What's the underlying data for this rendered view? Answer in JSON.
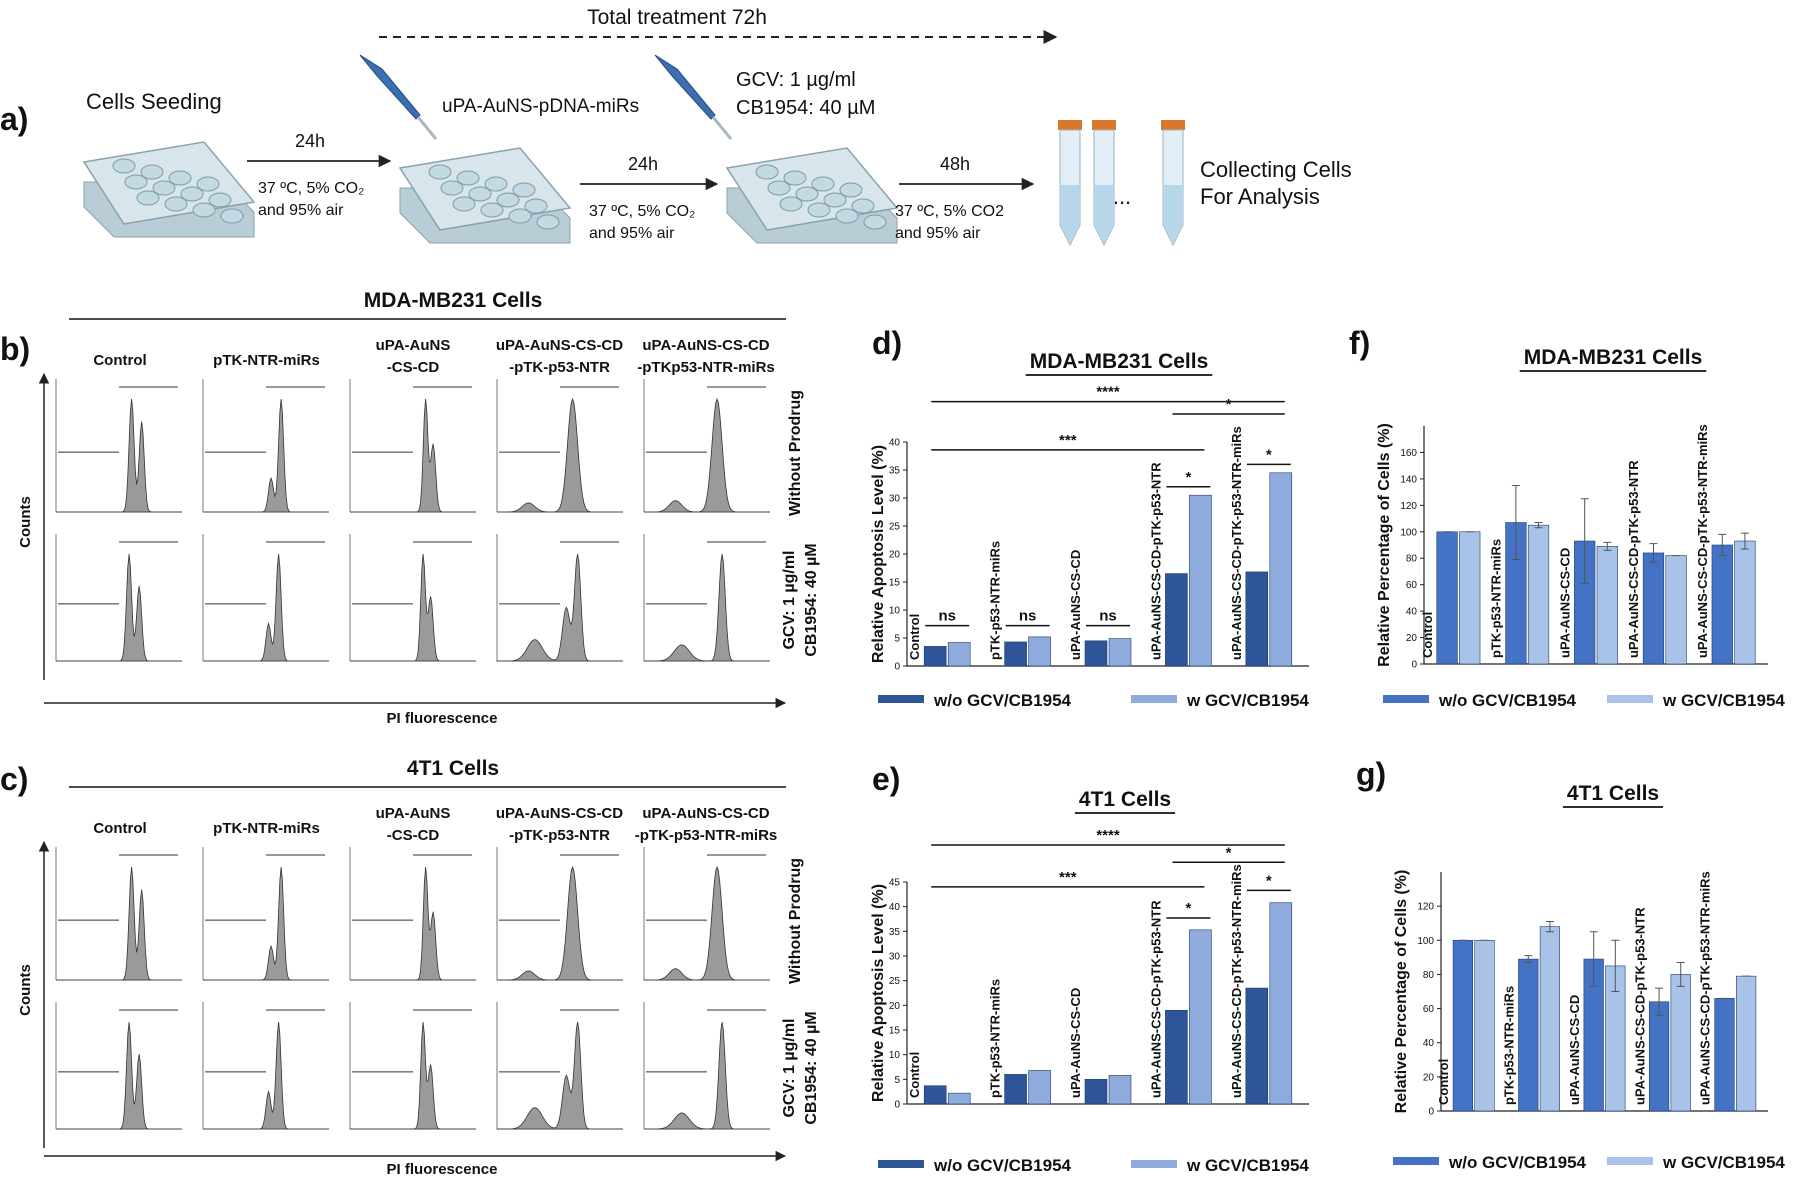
{
  "panel_labels": [
    "a)",
    "b)",
    "c)",
    "d)",
    "e)",
    "f)",
    "g)"
  ],
  "workflow": {
    "duration": "Total treatment 72h",
    "seeding": "Cells Seeding",
    "transfection": "uPA-AuNS-pDNA-miRs",
    "prodrug": [
      "GCV: 1 µg/ml",
      "CB1954: 40 µM"
    ],
    "incubations": [
      {
        "time": "24h",
        "conditions": [
          "37 ºC, 5% CO₂",
          "and 95% air"
        ]
      },
      {
        "time": "24h",
        "conditions": [
          "37 ºC, 5% CO₂",
          "and 95% air"
        ]
      },
      {
        "time": "48h",
        "conditions": [
          "37 ºC, 5% CO2",
          "and 95% air"
        ]
      }
    ],
    "more": "...",
    "collection": [
      "Collecting Cells",
      "For Analysis"
    ]
  },
  "flow_panels": [
    {
      "title": "MDA-MB231 Cells",
      "columns": [
        [
          "Control"
        ],
        [
          "pTK-NTR-miRs"
        ],
        [
          "uPA-AuNS",
          "-CS-CD"
        ],
        [
          "uPA-AuNS-CS-CD",
          "-pTK-p53-NTR"
        ],
        [
          "uPA-AuNS-CS-CD",
          "-pTKp53-NTR-miRs"
        ]
      ],
      "rows": [
        [
          "Without Prodrug"
        ],
        [
          "GCV: 1 µg/ml",
          "CB1954: 40 µM"
        ]
      ],
      "y_label": "Counts",
      "x_label": "PI fluorescence"
    },
    {
      "title": "4T1 Cells",
      "columns": [
        [
          "Control"
        ],
        [
          "pTK-NTR-miRs"
        ],
        [
          "uPA-AuNS",
          "-CS-CD"
        ],
        [
          "uPA-AuNS-CS-CD",
          "-pTK-p53-NTR"
        ],
        [
          "uPA-AuNS-CS-CD",
          "-pTK-p53-NTR-miRs"
        ]
      ],
      "rows": [
        [
          "Without Prodrug"
        ],
        [
          "GCV: 1 µg/ml",
          "CB1954: 40 µM"
        ]
      ],
      "y_label": "Counts",
      "x_label": "PI fluorescence"
    }
  ],
  "chart_data": [
    {
      "type": "bar",
      "title": "MDA-MB231 Cells",
      "y_label": "Relative Apoptosis Level (%)",
      "categories": [
        "Control",
        "pTK-p53-NTR-miRs",
        "uPA-AuNS-CS-CD",
        "uPA-AuNS-CS-CD-pTK-p53-NTR",
        "uPA-AuNS-CS-CD-pTK-p53-NTR-miRs"
      ],
      "series": [
        {
          "name": "w/o GCV/CB1954",
          "color": "#2e5597",
          "values": [
            3.5,
            4.3,
            4.5,
            16.5,
            16.8
          ]
        },
        {
          "name": "w GCV/CB1954",
          "color": "#8faadc",
          "values": [
            4.2,
            5.2,
            4.9,
            30.5,
            34.5
          ]
        }
      ],
      "ylim": [
        0,
        40
      ],
      "yticks": [
        0,
        5,
        10,
        15,
        20,
        25,
        30,
        35,
        40
      ],
      "annotations": [
        "ns",
        "ns",
        "ns",
        "*",
        "*",
        "***",
        "****",
        "*"
      ]
    },
    {
      "type": "bar",
      "title": "4T1 Cells",
      "y_label": "Relative Apoptosis Level (%)",
      "categories": [
        "Control",
        "pTK-p53-NTR-miRs",
        "uPA-AuNS-CS-CD",
        "uPA-AuNS-CS-CD-pTK-p53-NTR",
        "uPA-AuNS-CS-CD-pTK-p53-NTR-miRs"
      ],
      "series": [
        {
          "name": "w/o GCV/CB1954",
          "color": "#2e5597",
          "values": [
            3.7,
            6,
            5,
            19,
            23.5
          ]
        },
        {
          "name": "w GCV/CB1954",
          "color": "#8faadc",
          "values": [
            2.2,
            6.8,
            5.8,
            35.3,
            40.8
          ]
        }
      ],
      "ylim": [
        0,
        45
      ],
      "yticks": [
        0,
        5,
        10,
        15,
        20,
        25,
        30,
        35,
        40,
        45
      ],
      "annotations": [
        "*",
        "*",
        "***",
        "****",
        "*"
      ]
    },
    {
      "type": "bar",
      "title": "MDA-MB231 Cells",
      "y_label": "Relative Percentage of Cells (%)",
      "categories": [
        "Control",
        "pTK-p53-NTR-miRs",
        "uPA-AuNS-CS-CD",
        "uPA-AuNS-CS-CD-pTK-p53-NTR",
        "uPA-AuNS-CS-CD-pTK-p53-NTR-miRs"
      ],
      "series": [
        {
          "name": "w/o GCV/CB1954",
          "color": "#4472c4",
          "values": [
            100,
            107,
            93,
            84,
            90
          ],
          "errors": [
            0,
            28,
            32,
            7,
            8
          ]
        },
        {
          "name": "w GCV/CB1954",
          "color": "#a8c2e8",
          "values": [
            100,
            105,
            89,
            82,
            93
          ],
          "errors": [
            0,
            2,
            3,
            0,
            6
          ]
        }
      ],
      "ylim": [
        0,
        180
      ],
      "yticks": [
        0,
        20,
        40,
        60,
        80,
        100,
        120,
        140,
        160
      ]
    },
    {
      "type": "bar",
      "title": "4T1 Cells",
      "y_label": "Relative Percentage of Cells (%)",
      "categories": [
        "Control",
        "pTK-p53-NTR-miRs",
        "uPA-AuNS-CS-CD",
        "uPA-AuNS-CS-CD-pTK-p53-NTR",
        "uPA-AuNS-CS-CD-pTK-p53-NTR-miRs"
      ],
      "series": [
        {
          "name": "w/o GCV/CB1954",
          "color": "#4472c4",
          "values": [
            100,
            89,
            89,
            64,
            66
          ],
          "errors": [
            0,
            2,
            16,
            8,
            0
          ]
        },
        {
          "name": "w GCV/CB1954",
          "color": "#a8c2e8",
          "values": [
            100,
            108,
            85,
            80,
            79
          ],
          "errors": [
            0,
            3,
            15,
            7,
            0
          ]
        }
      ],
      "ylim": [
        0,
        140
      ],
      "yticks": [
        0,
        20,
        40,
        60,
        80,
        100,
        120
      ]
    }
  ]
}
